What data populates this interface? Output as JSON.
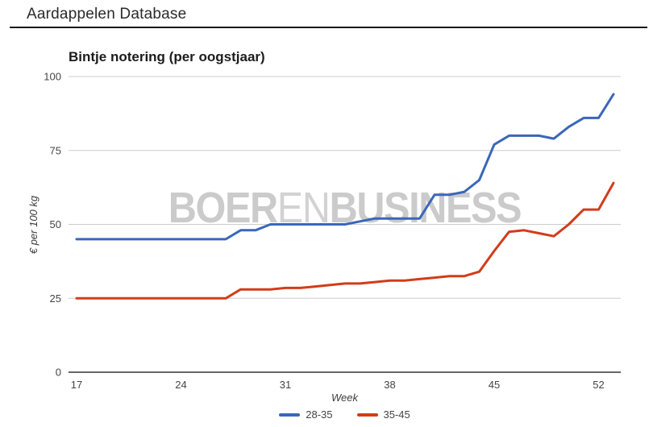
{
  "header": {
    "title": "Aardappelen Database"
  },
  "watermark": {
    "text": "BOERENBUSINESS",
    "bold_1": "BOER",
    "light": "EN",
    "bold_2": "BUSINESS"
  },
  "colors": {
    "series_blue": "#3a67b8",
    "series_red": "#d23c1a",
    "gridline": "#cccccc",
    "axis_line": "#333333",
    "tick_text": "#444444",
    "watermark": "#cbcbcb"
  },
  "chart_data": {
    "type": "line",
    "title": "Bintje notering (per oogstjaar)",
    "xlabel": "Week",
    "ylabel": "€ per 100 kg",
    "xlim": [
      17,
      53
    ],
    "ylim": [
      0,
      100
    ],
    "x_ticks": [
      17,
      24,
      31,
      38,
      45,
      52
    ],
    "y_ticks": [
      0,
      25,
      50,
      75,
      100
    ],
    "grid": "horizontal",
    "legend_position": "bottom",
    "x": [
      17,
      18,
      19,
      20,
      21,
      22,
      23,
      24,
      25,
      26,
      27,
      28,
      29,
      30,
      31,
      32,
      33,
      34,
      35,
      36,
      37,
      38,
      39,
      40,
      41,
      42,
      43,
      44,
      45,
      46,
      47,
      48,
      49,
      50,
      51,
      52,
      53
    ],
    "series": [
      {
        "name": "28-35",
        "color": "#3a67b8",
        "values": [
          45,
          45,
          45,
          45,
          45,
          45,
          45,
          45,
          45,
          45,
          45,
          48,
          48,
          50,
          50,
          50,
          50,
          50,
          50,
          51,
          52,
          52,
          52,
          52,
          60,
          60,
          61,
          65,
          77,
          80,
          80,
          80,
          79,
          83,
          86,
          86,
          94
        ]
      },
      {
        "name": "35-45",
        "color": "#d23c1a",
        "values": [
          25,
          25,
          25,
          25,
          25,
          25,
          25,
          25,
          25,
          25,
          25,
          28,
          28,
          28,
          28.5,
          28.5,
          29,
          29.5,
          30,
          30,
          30.5,
          31,
          31,
          31.5,
          32,
          32.5,
          32.5,
          34,
          41,
          47.5,
          48,
          47,
          46,
          50,
          55,
          55,
          64
        ]
      }
    ]
  }
}
